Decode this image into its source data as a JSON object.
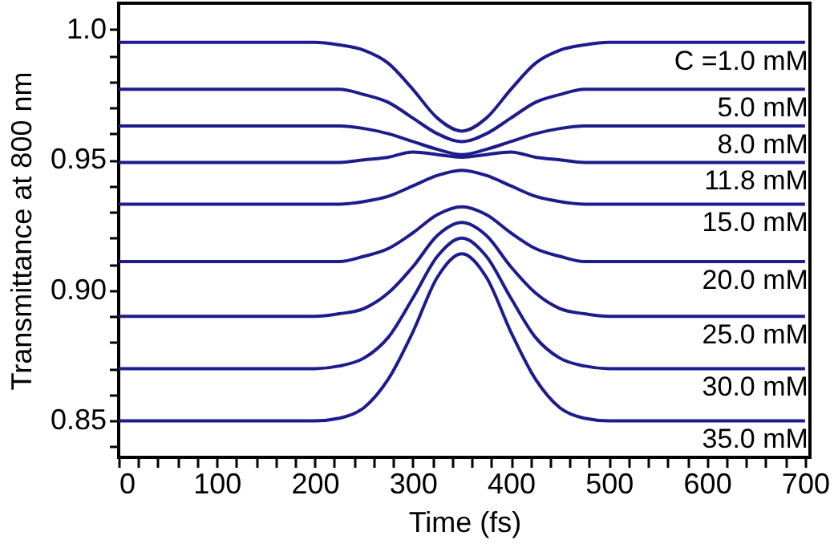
{
  "chart_data": {
    "type": "line",
    "xlabel": "Time (fs)",
    "ylabel": "Transmittance at 800 nm",
    "x": [
      0,
      200,
      225,
      250,
      275,
      300,
      325,
      350,
      375,
      400,
      425,
      450,
      475,
      500,
      700
    ],
    "series": [
      {
        "name": "C =1.0 mM",
        "color": "#1c1c8c",
        "values": [
          0.995,
          0.995,
          0.994,
          0.992,
          0.987,
          0.977,
          0.966,
          0.961,
          0.966,
          0.977,
          0.987,
          0.992,
          0.994,
          0.995,
          0.995
        ]
      },
      {
        "name": "5.0 mM",
        "color": "#1c1c8c",
        "values": [
          0.977,
          0.977,
          0.977,
          0.975,
          0.972,
          0.966,
          0.96,
          0.957,
          0.96,
          0.966,
          0.972,
          0.975,
          0.977,
          0.977,
          0.977
        ]
      },
      {
        "name": "8.0 mM",
        "color": "#1c1c8c",
        "values": [
          0.963,
          0.963,
          0.963,
          0.962,
          0.96,
          0.957,
          0.954,
          0.952,
          0.954,
          0.957,
          0.96,
          0.962,
          0.963,
          0.963,
          0.963
        ]
      },
      {
        "name": "11.8 mM",
        "color": "#1c1c8c",
        "values": [
          0.949,
          0.949,
          0.949,
          0.95,
          0.951,
          0.953,
          0.952,
          0.951,
          0.952,
          0.953,
          0.951,
          0.95,
          0.949,
          0.949,
          0.949
        ]
      },
      {
        "name": "15.0 mM",
        "color": "#1c1c8c",
        "values": [
          0.933,
          0.933,
          0.933,
          0.934,
          0.936,
          0.94,
          0.944,
          0.946,
          0.944,
          0.94,
          0.936,
          0.934,
          0.933,
          0.933,
          0.933
        ]
      },
      {
        "name": "20.0 mM",
        "color": "#1c1c8c",
        "values": [
          0.911,
          0.911,
          0.911,
          0.913,
          0.916,
          0.922,
          0.929,
          0.932,
          0.929,
          0.922,
          0.916,
          0.913,
          0.911,
          0.911,
          0.911
        ]
      },
      {
        "name": "25.0 mM",
        "color": "#1c1c8c",
        "values": [
          0.89,
          0.89,
          0.891,
          0.893,
          0.899,
          0.909,
          0.921,
          0.926,
          0.921,
          0.909,
          0.899,
          0.893,
          0.891,
          0.89,
          0.89
        ]
      },
      {
        "name": "30.0 mM",
        "color": "#1c1c8c",
        "values": [
          0.87,
          0.87,
          0.871,
          0.874,
          0.882,
          0.897,
          0.913,
          0.92,
          0.913,
          0.897,
          0.882,
          0.874,
          0.871,
          0.87,
          0.87
        ]
      },
      {
        "name": "35.0 mM",
        "color": "#1c1c8c",
        "values": [
          0.85,
          0.85,
          0.851,
          0.855,
          0.866,
          0.884,
          0.905,
          0.914,
          0.905,
          0.884,
          0.866,
          0.855,
          0.851,
          0.85,
          0.85
        ]
      }
    ],
    "xlim": [
      0,
      705
    ],
    "xticks": [
      0,
      {
        "value": 20,
        "label": null
      },
      {
        "value": 40,
        "label": null
      },
      {
        "value": 60,
        "label": null
      },
      {
        "value": 80,
        "label": null
      },
      100,
      {
        "value": 120,
        "label": null
      },
      {
        "value": 140,
        "label": null
      },
      {
        "value": 160,
        "label": null
      },
      {
        "value": 180,
        "label": null
      },
      200,
      {
        "value": 220,
        "label": null
      },
      {
        "value": 240,
        "label": null
      },
      {
        "value": 260,
        "label": null
      },
      {
        "value": 280,
        "label": null
      },
      300,
      {
        "value": 320,
        "label": null
      },
      {
        "value": 340,
        "label": null
      },
      {
        "value": 360,
        "label": null
      },
      {
        "value": 380,
        "label": null
      },
      400,
      {
        "value": 420,
        "label": null
      },
      {
        "value": 440,
        "label": null
      },
      {
        "value": 460,
        "label": null
      },
      {
        "value": 480,
        "label": null
      },
      500,
      {
        "value": 520,
        "label": null
      },
      {
        "value": 540,
        "label": null
      },
      {
        "value": 560,
        "label": null
      },
      {
        "value": 580,
        "label": null
      },
      600,
      {
        "value": 620,
        "label": null
      },
      {
        "value": 640,
        "label": null
      },
      {
        "value": 660,
        "label": null
      },
      {
        "value": 680,
        "label": null
      },
      700
    ],
    "ylim": [
      0.836,
      1.01
    ],
    "yticks": [
      {
        "value": 0.84,
        "label": null
      },
      {
        "value": 0.85,
        "label": "0.85"
      },
      {
        "value": 0.86,
        "label": null
      },
      {
        "value": 0.87,
        "label": null
      },
      {
        "value": 0.88,
        "label": null
      },
      {
        "value": 0.89,
        "label": null
      },
      {
        "value": 0.9,
        "label": "0.90"
      },
      {
        "value": 0.91,
        "label": null
      },
      {
        "value": 0.92,
        "label": null
      },
      {
        "value": 0.93,
        "label": null
      },
      {
        "value": 0.94,
        "label": null
      },
      {
        "value": 0.95,
        "label": "0.95"
      },
      {
        "value": 0.96,
        "label": null
      },
      {
        "value": 0.97,
        "label": null
      },
      {
        "value": 0.98,
        "label": null
      },
      {
        "value": 0.99,
        "label": null
      },
      {
        "value": 1.0,
        "label": "1.0"
      }
    ],
    "grid": false,
    "legend": false,
    "marker": "none",
    "line_style": "solid"
  }
}
